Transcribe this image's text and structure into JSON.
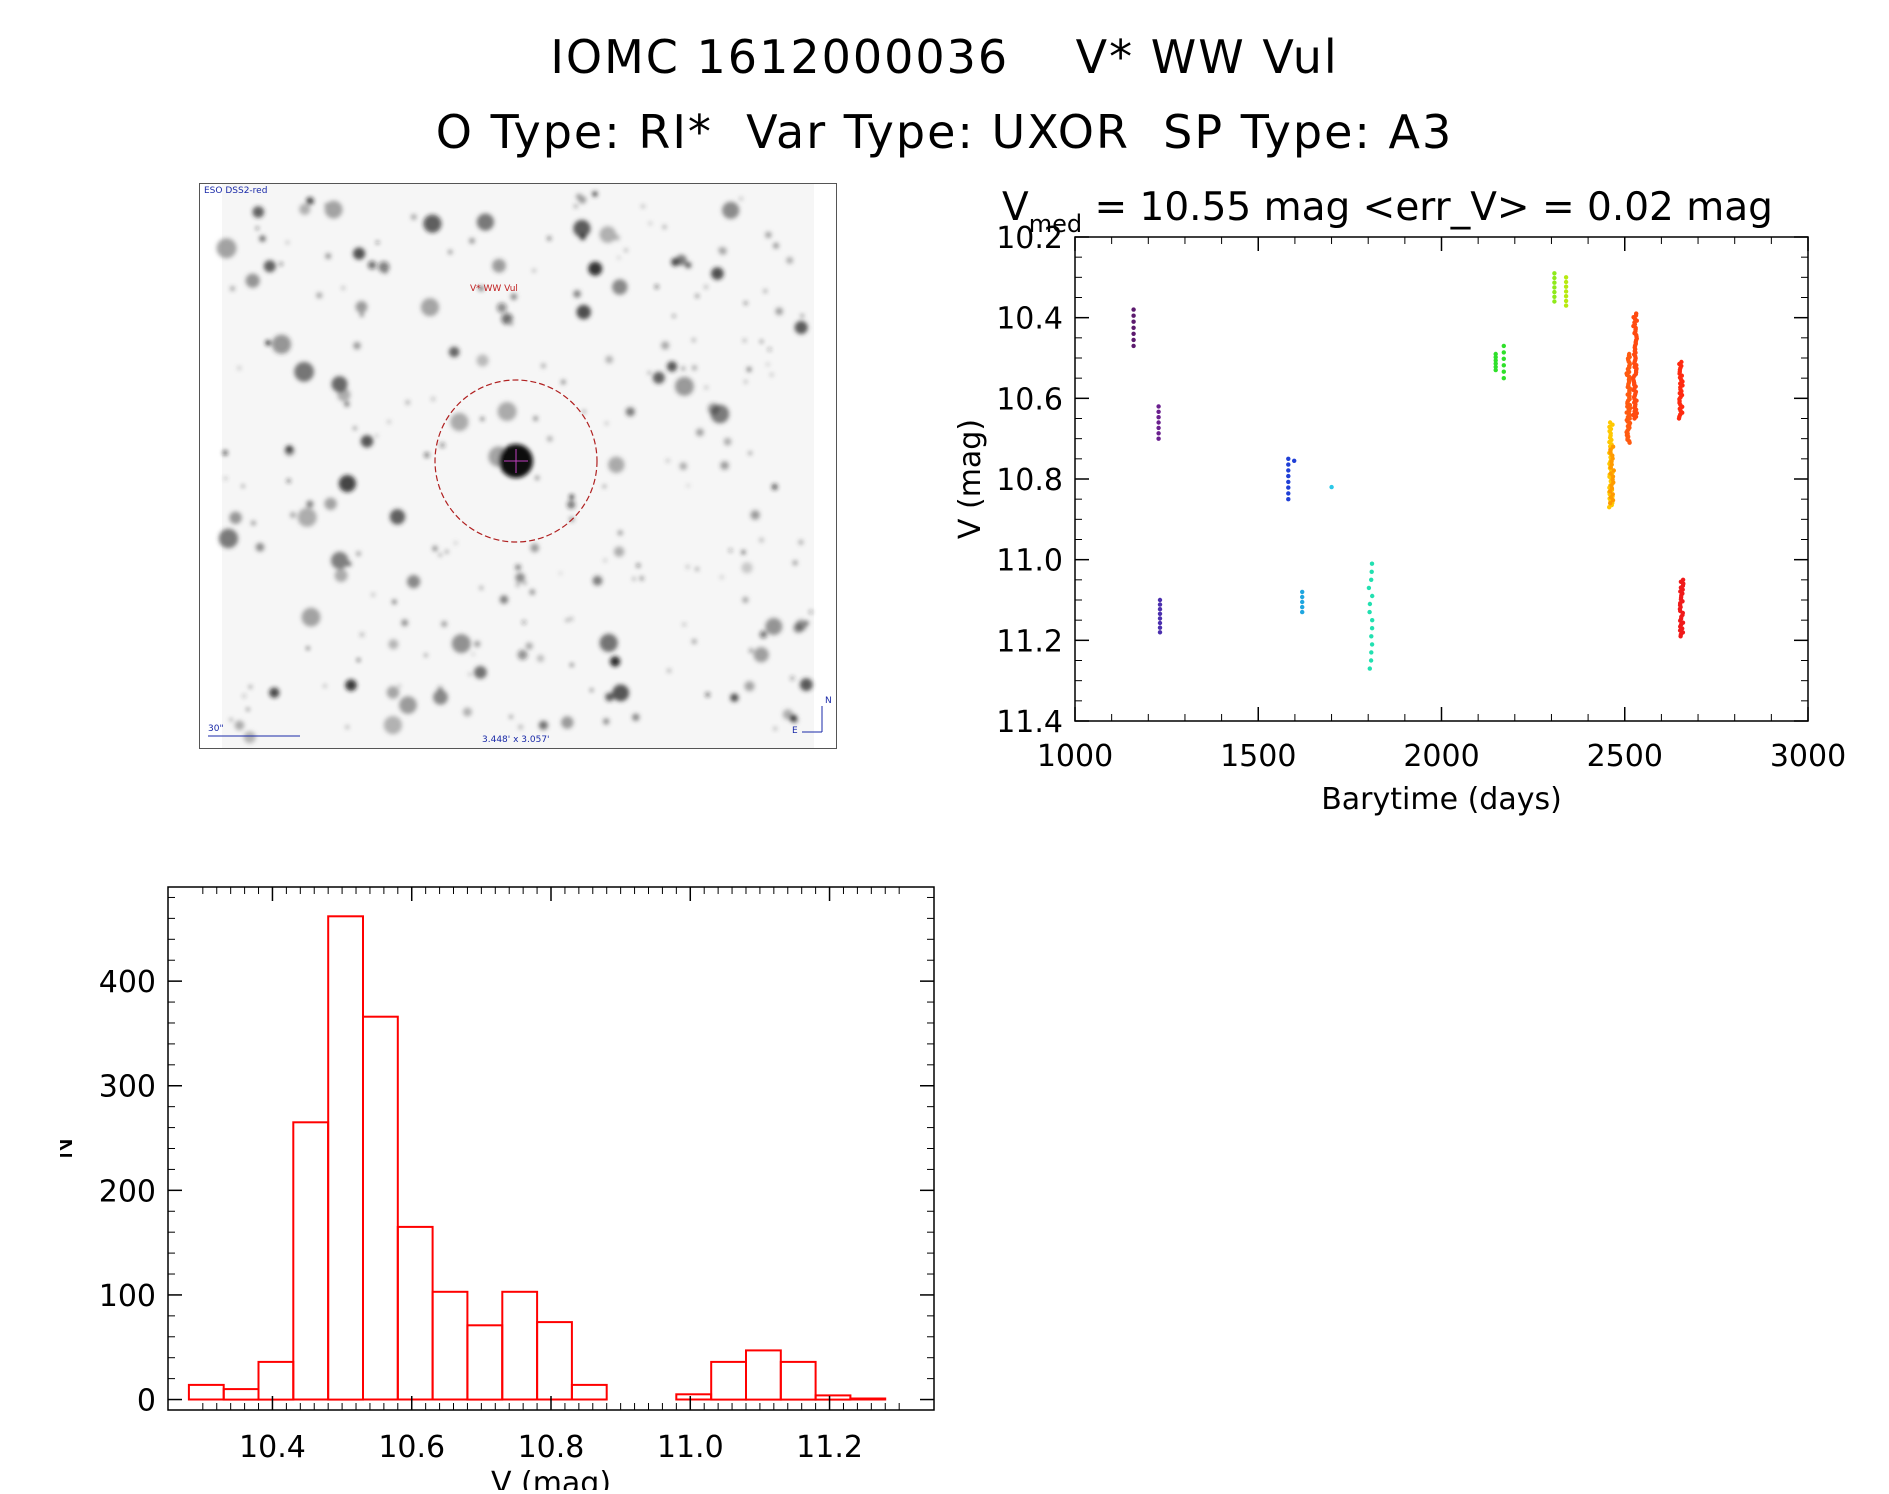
{
  "header": {
    "title_line1": "IOMC 1612000036    V* WW Vul",
    "title_line2": "O Type: RI*  Var Type: UXOR  SP Type: A3"
  },
  "finder": {
    "survey_label": "ESO DSS2-red",
    "target_label": "V* WW Vul",
    "scale_label": "30\"",
    "fov_label": "3.448' x 3.057'",
    "north_label": "N",
    "east_label": "E"
  },
  "chart_data": [
    {
      "type": "scatter",
      "title_prefix": "V",
      "title_subscript": "med",
      "title_suffix": " = 10.55 mag <err_V> = 0.02 mag",
      "xlabel": "Barytime (days)",
      "ylabel": "V (mag)",
      "xlim": [
        1000,
        3000
      ],
      "ylim": [
        11.4,
        10.2
      ],
      "x_ticks": [
        1000,
        1500,
        2000,
        2500,
        3000
      ],
      "y_ticks": [
        "10.2",
        "10.4",
        "10.6",
        "10.8",
        "11.0",
        "11.2",
        "11.4"
      ],
      "groups": [
        {
          "x": 1160,
          "y_min": 10.38,
          "y_max": 10.47,
          "n": 7,
          "color": "#5c1a6e"
        },
        {
          "x": 1228,
          "y_min": 10.62,
          "y_max": 10.7,
          "n": 7,
          "color": "#6a1f8e"
        },
        {
          "x": 1232,
          "y_min": 11.1,
          "y_max": 11.18,
          "n": 8,
          "color": "#4b2fae"
        },
        {
          "x": 1582,
          "y_min": 10.75,
          "y_max": 10.85,
          "n": 8,
          "color": "#1f3fd6"
        },
        {
          "x": 1598,
          "y_min": 10.75,
          "y_max": 10.76,
          "n": 1,
          "color": "#1f3fd6"
        },
        {
          "x": 1620,
          "y_min": 11.08,
          "y_max": 11.13,
          "n": 5,
          "color": "#1fa6e0"
        },
        {
          "x": 1700,
          "y_min": 10.82,
          "y_max": 10.82,
          "n": 1,
          "color": "#2bc8e8"
        },
        {
          "x": 1806,
          "y_min": 11.01,
          "y_max": 11.27,
          "n": 14,
          "color": "#22e0b0"
        },
        {
          "x": 2148,
          "y_min": 10.49,
          "y_max": 10.53,
          "n": 6,
          "color": "#2fe02a"
        },
        {
          "x": 2170,
          "y_min": 10.47,
          "y_max": 10.55,
          "n": 6,
          "color": "#2fe02a"
        },
        {
          "x": 2308,
          "y_min": 10.29,
          "y_max": 10.36,
          "n": 7,
          "color": "#8fea1a"
        },
        {
          "x": 2340,
          "y_min": 10.3,
          "y_max": 10.37,
          "n": 7,
          "color": "#b7ea10"
        },
        {
          "x": 2462,
          "y_min": 10.66,
          "y_max": 10.87,
          "n": 40,
          "color": "#ffc800"
        },
        {
          "x": 2465,
          "y_min": 10.72,
          "y_max": 10.86,
          "n": 20,
          "color": "#ff9a00"
        },
        {
          "x": 2510,
          "y_min": 10.49,
          "y_max": 10.71,
          "n": 60,
          "color": "#ff5a10"
        },
        {
          "x": 2528,
          "y_min": 10.39,
          "y_max": 10.65,
          "n": 60,
          "color": "#ff4a10"
        },
        {
          "x": 2653,
          "y_min": 10.51,
          "y_max": 10.65,
          "n": 30,
          "color": "#ff2a10"
        },
        {
          "x": 2655,
          "y_min": 11.05,
          "y_max": 11.19,
          "n": 30,
          "color": "#f01a1a"
        }
      ]
    },
    {
      "type": "bar",
      "style": "histogram",
      "xlabel": "V (mag)",
      "ylabel": "N",
      "xlim": [
        10.25,
        11.35
      ],
      "ylim": [
        -10,
        490
      ],
      "x_ticks": [
        "10.4",
        "10.6",
        "10.8",
        "11.0",
        "11.2"
      ],
      "y_ticks": [
        "0",
        "100",
        "200",
        "300",
        "400"
      ],
      "bin_width": 0.05,
      "bin_starts": [
        10.28,
        10.33,
        10.38,
        10.43,
        10.48,
        10.53,
        10.58,
        10.63,
        10.68,
        10.73,
        10.78,
        10.83,
        10.88,
        10.93,
        10.98,
        11.03,
        11.08,
        11.13,
        11.18,
        11.23
      ],
      "values": [
        14,
        10,
        36,
        265,
        462,
        366,
        165,
        103,
        71,
        103,
        74,
        14,
        0,
        0,
        5,
        36,
        47,
        36,
        4,
        1
      ],
      "color": "#ff0000"
    }
  ]
}
